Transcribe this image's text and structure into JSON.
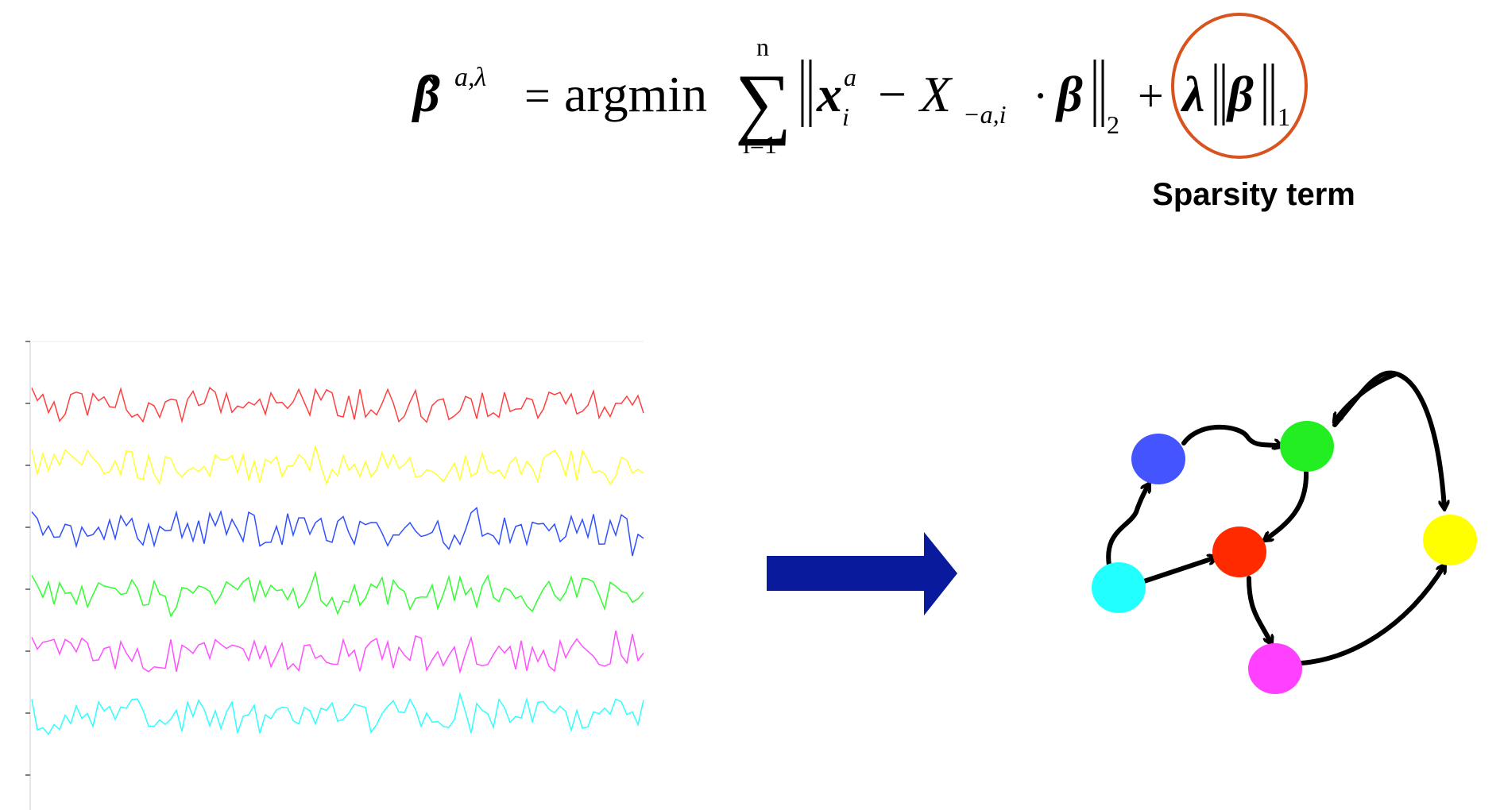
{
  "formula": {
    "beta": "β",
    "beta_sup": "a,λ",
    "equals": "=",
    "argmin": "argmin",
    "sum_symbol": "∑",
    "sum_upper": "n",
    "sum_lower": "i=1",
    "x": "x",
    "x_sup": "a",
    "x_sub": "i",
    "minus": "−",
    "X": "X",
    "X_sub": "−a,i",
    "dot": "·",
    "beta2": "β",
    "norm2_sub": "2",
    "plus": "+",
    "lambda": "λ",
    "beta3": "β",
    "norm1_sub": "1",
    "highlight_color": "#d9531e"
  },
  "sparsity_label": "Sparsity term",
  "arrow_color": "#0a1a9c",
  "timeseries": {
    "colors": [
      "#ff4040",
      "#ffff30",
      "#3050ff",
      "#30ff30",
      "#ff50ff",
      "#30ffff"
    ],
    "tick_count": 8
  },
  "graph": {
    "nodes": [
      {
        "id": "blue",
        "color": "#4455ff"
      },
      {
        "id": "green",
        "color": "#22ee22"
      },
      {
        "id": "red",
        "color": "#ff2a00"
      },
      {
        "id": "cyan",
        "color": "#22ffff"
      },
      {
        "id": "yellow",
        "color": "#ffff00"
      },
      {
        "id": "magenta",
        "color": "#ff40ff"
      }
    ],
    "edges": [
      {
        "from": "cyan",
        "to": "blue"
      },
      {
        "from": "blue",
        "to": "green"
      },
      {
        "from": "green",
        "to": "red"
      },
      {
        "from": "cyan",
        "to": "red"
      },
      {
        "from": "red",
        "to": "magenta"
      },
      {
        "from": "magenta",
        "to": "yellow"
      },
      {
        "from": "green",
        "to": "yellow"
      },
      {
        "from": "yellow",
        "to": "green"
      }
    ]
  }
}
